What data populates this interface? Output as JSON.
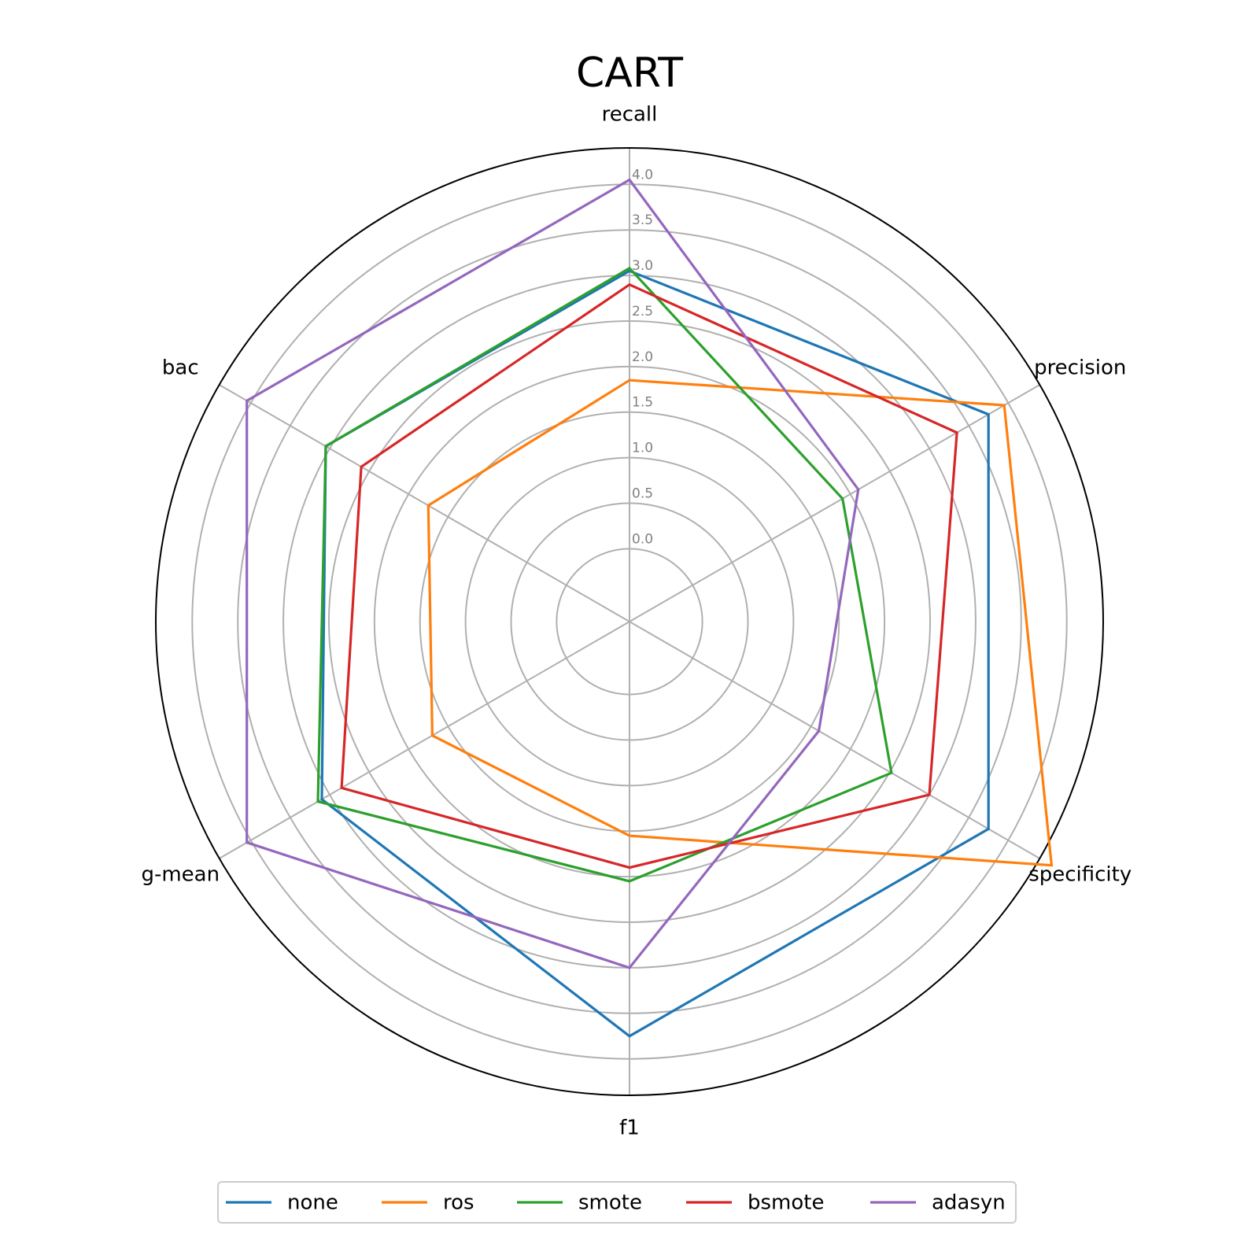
{
  "chart_data": {
    "type": "radar",
    "title": "CART",
    "axes": [
      "recall",
      "precision",
      "specificity",
      "f1",
      "g-mean",
      "bac"
    ],
    "radial_ticks": [
      "0.0",
      "0.5",
      "1.0",
      "1.5",
      "2.0",
      "2.5",
      "3.0",
      "3.5",
      "4.0"
    ],
    "rlim": [
      -0.8,
      4.4
    ],
    "grid": true,
    "legend_position": "bottom",
    "series": [
      {
        "name": "none",
        "color": "#1f77b4",
        "values": [
          3.05,
          3.75,
          3.75,
          3.75,
          3.1,
          3.05
        ]
      },
      {
        "name": "ros",
        "color": "#ff7f0e",
        "values": [
          1.85,
          3.95,
          4.55,
          1.55,
          1.7,
          1.75
        ]
      },
      {
        "name": "smote",
        "color": "#2ca02c",
        "values": [
          3.08,
          1.9,
          2.52,
          2.05,
          3.15,
          3.05
        ]
      },
      {
        "name": "bsmote",
        "color": "#d62728",
        "values": [
          2.9,
          3.35,
          3.0,
          1.9,
          2.85,
          2.6
        ]
      },
      {
        "name": "adasyn",
        "color": "#9467bd",
        "values": [
          4.05,
          2.1,
          1.6,
          3.0,
          4.05,
          4.05
        ]
      }
    ]
  }
}
